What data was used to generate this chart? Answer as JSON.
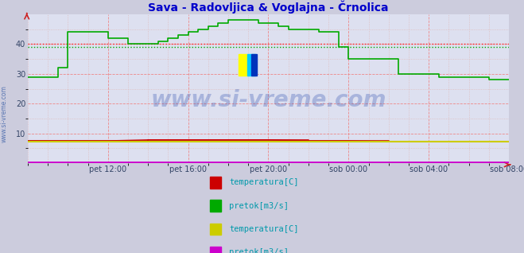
{
  "title": "Sava - Radovljica & Voglajna - Črnolica",
  "title_color": "#0000cc",
  "title_fontsize": 10,
  "bg_color": "#ccccdd",
  "plot_bg_color": "#dde0f0",
  "watermark": "www.si-vreme.com",
  "xlabel_ticks": [
    "pet 12:00",
    "pet 16:00",
    "pet 20:00",
    "sob 00:00",
    "sob 04:00",
    "sob 08:00"
  ],
  "ylabel_ticks": [
    10,
    20,
    30,
    40
  ],
  "ylim": [
    0,
    50
  ],
  "xlim": [
    0,
    288
  ],
  "tick_positions": [
    48,
    96,
    144,
    192,
    240,
    288
  ],
  "grid_major_color": "#ee8888",
  "grid_minor_color": "#ddbbbb",
  "dotted_line_red_y": 40,
  "dotted_line_green_y": 39,
  "watermark_color": "#2244aa",
  "watermark_alpha": 0.28,
  "side_label": "www.si-vreme.com",
  "series": [
    {
      "label": "temperatura [C]",
      "color": "#cc0000",
      "group": 1,
      "data_x": [
        0,
        24,
        48,
        72,
        96,
        120,
        144,
        168,
        192,
        216,
        240,
        264,
        288
      ],
      "data_y": [
        7.5,
        7.5,
        7.5,
        7.8,
        7.8,
        7.8,
        7.8,
        7.5,
        7.5,
        7.2,
        7.2,
        7.2,
        7.2
      ]
    },
    {
      "label": "pretok [m3/s]",
      "color": "#00aa00",
      "group": 1,
      "data_x": [
        0,
        6,
        12,
        18,
        24,
        30,
        36,
        42,
        48,
        54,
        60,
        66,
        72,
        78,
        84,
        90,
        96,
        102,
        108,
        114,
        120,
        126,
        132,
        138,
        144,
        150,
        156,
        162,
        168,
        174,
        180,
        186,
        192,
        198,
        204,
        210,
        216,
        222,
        228,
        234,
        240,
        246,
        252,
        258,
        264,
        270,
        276,
        282,
        288
      ],
      "data_y": [
        29,
        29,
        29,
        32,
        44,
        44,
        44,
        44,
        42,
        42,
        40,
        40,
        40,
        41,
        42,
        43,
        44,
        45,
        46,
        47,
        48,
        48,
        48,
        47,
        47,
        46,
        45,
        45,
        45,
        44,
        44,
        39,
        35,
        35,
        35,
        35,
        35,
        30,
        30,
        30,
        30,
        29,
        29,
        29,
        29,
        29,
        28,
        28,
        28
      ]
    },
    {
      "label": "temperatura [C]",
      "color": "#cccc00",
      "group": 2,
      "data_x": [
        0,
        48,
        96,
        144,
        192,
        240,
        288
      ],
      "data_y": [
        7.3,
        7.3,
        7.3,
        7.3,
        7.3,
        7.3,
        7.3
      ]
    },
    {
      "label": "pretok [m3/s]",
      "color": "#cc00cc",
      "group": 2,
      "data_x": [
        0,
        48,
        96,
        144,
        192,
        240,
        288
      ],
      "data_y": [
        0.3,
        0.3,
        0.3,
        0.3,
        0.3,
        0.3,
        0.3
      ]
    }
  ],
  "legend": [
    {
      "label": "temperatura[C]",
      "color": "#cc0000",
      "group": 1
    },
    {
      "label": "pretok[m3/s]",
      "color": "#00aa00",
      "group": 1
    },
    {
      "label": "temperatura[C]",
      "color": "#cccc00",
      "group": 2
    },
    {
      "label": "pretok[m3/s]",
      "color": "#cc00cc",
      "group": 2
    }
  ],
  "legend_text_color": "#0099aa"
}
